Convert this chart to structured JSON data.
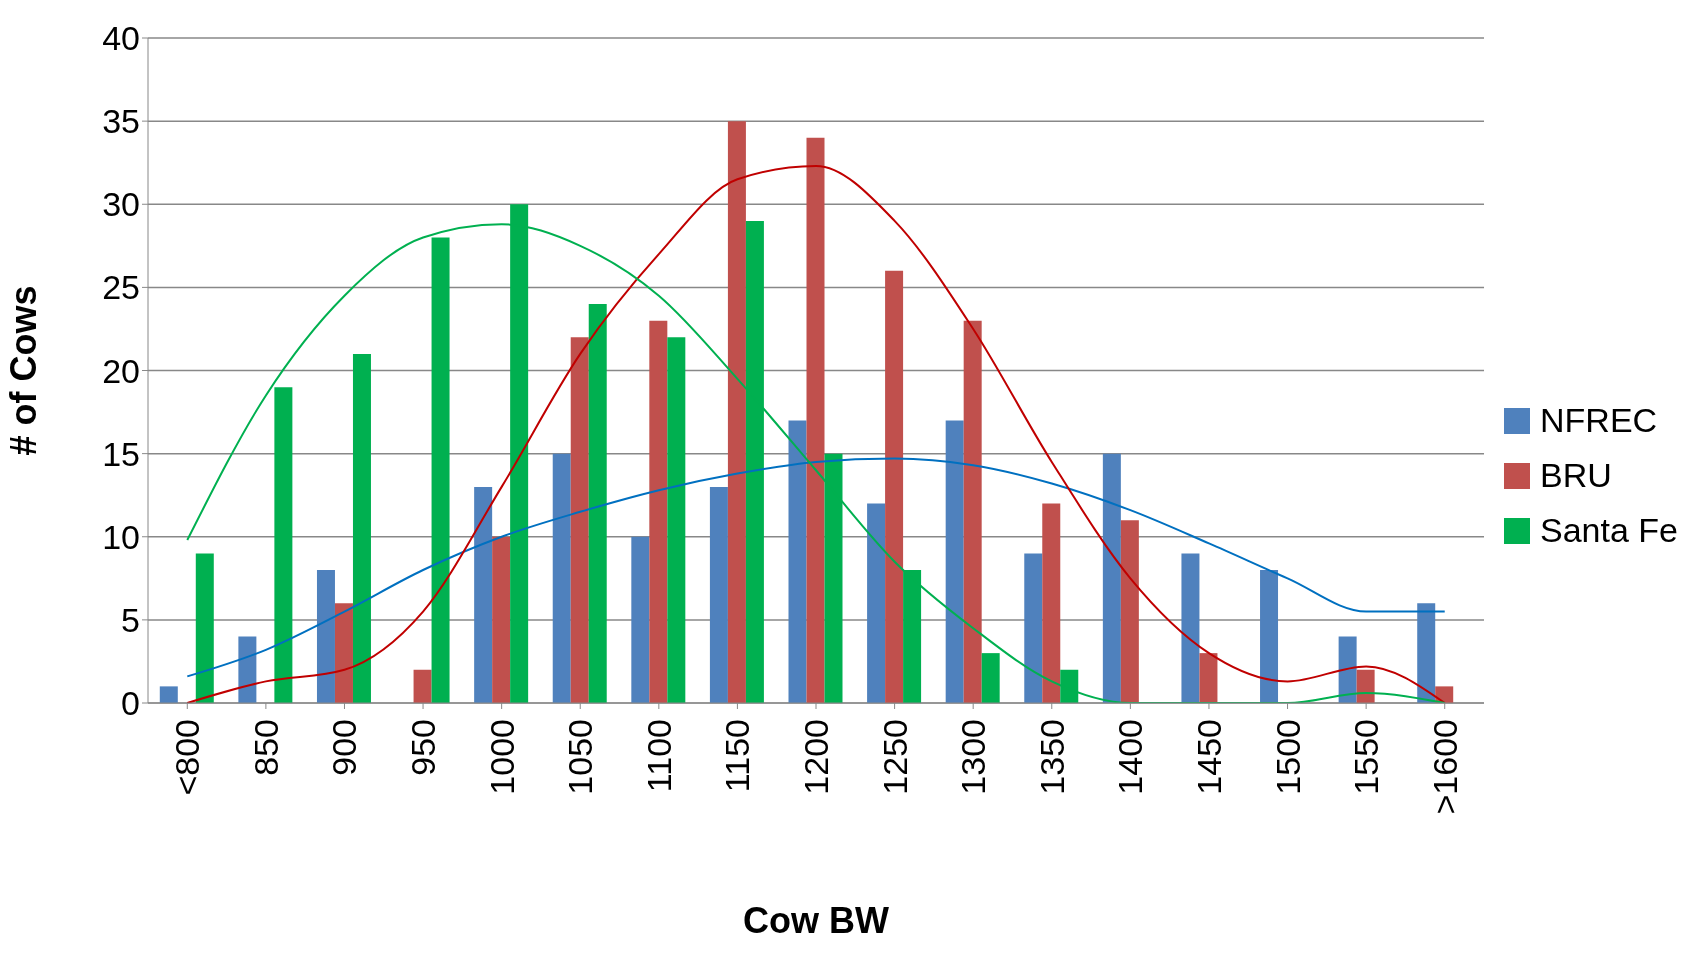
{
  "chart_data": {
    "type": "bar",
    "xlabel": "Cow BW",
    "ylabel": "# of Cows",
    "categories": [
      "<800",
      "850",
      "900",
      "950",
      "1000",
      "1050",
      "1100",
      "1150",
      "1200",
      "1250",
      "1300",
      "1350",
      "1400",
      "1450",
      "1500",
      "1550",
      ">1600"
    ],
    "series": [
      {
        "name": "NFREC",
        "color": "#4f81bd",
        "values": [
          1,
          4,
          8,
          0,
          13,
          15,
          10,
          13,
          17,
          12,
          17,
          9,
          15,
          9,
          8,
          4,
          6
        ]
      },
      {
        "name": "BRU",
        "color": "#c0504d",
        "values": [
          0,
          0,
          6,
          2,
          10,
          22,
          23,
          35,
          34,
          26,
          23,
          12,
          11,
          3,
          0,
          2,
          1
        ]
      },
      {
        "name": "Santa Fe",
        "color": "#00b050",
        "values": [
          9,
          19,
          21,
          28,
          30,
          24,
          22,
          29,
          15,
          8,
          3,
          2,
          0,
          0,
          0,
          0,
          0
        ]
      },
      {
        "type": "line",
        "color": "#0070c0",
        "values": [
          1.6,
          3.2,
          5.5,
          8,
          10,
          11.5,
          12.8,
          13.8,
          14.5,
          14.7,
          14.3,
          13.2,
          11.6,
          9.6,
          7.5,
          5.5,
          5.5
        ]
      },
      {
        "type": "line",
        "color": "#c00000",
        "values": [
          0,
          1.3,
          2,
          5.5,
          13,
          21,
          27,
          31.5,
          32.3,
          29,
          22.5,
          14.5,
          7.5,
          3,
          1.3,
          2.2,
          0
        ]
      },
      {
        "type": "line",
        "color": "#00b050",
        "values": [
          9.8,
          18.5,
          24.5,
          28,
          28.8,
          27.5,
          24.5,
          19.5,
          14,
          8.5,
          4.5,
          1.3,
          0,
          0,
          0,
          0.6,
          0
        ]
      }
    ],
    "ylim": [
      0,
      40
    ],
    "yticks": [
      0,
      5,
      10,
      15,
      20,
      25,
      30,
      35,
      40
    ],
    "grid": "y",
    "legend": "right"
  }
}
